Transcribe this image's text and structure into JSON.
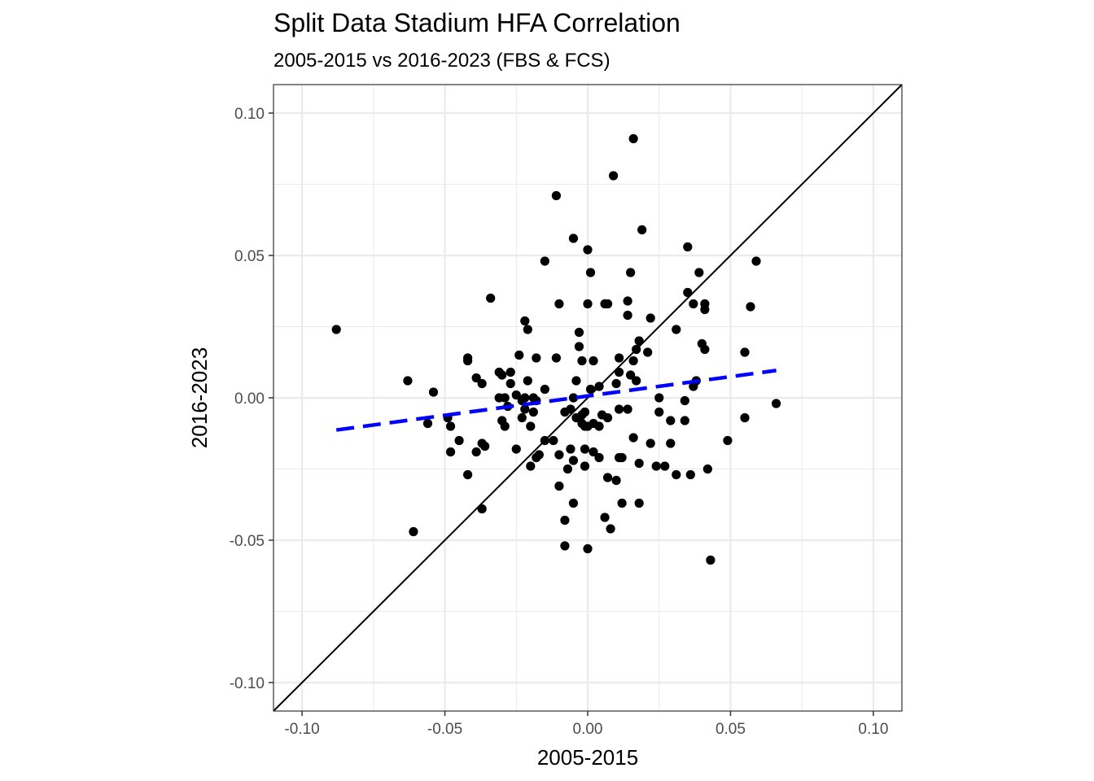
{
  "chart_data": {
    "type": "scatter",
    "title": "Split Data Stadium HFA Correlation",
    "subtitle": "2005-2015 vs 2016-2023 (FBS & FCS)",
    "xlabel": "2005-2015",
    "ylabel": "2016-2023",
    "xlim": [
      -0.11,
      0.11
    ],
    "ylim": [
      -0.11,
      0.11
    ],
    "x_ticks": [
      -0.1,
      -0.05,
      0.0,
      0.05,
      0.1
    ],
    "x_tick_labels": [
      "-0.10",
      "-0.05",
      "0.00",
      "0.05",
      "0.10"
    ],
    "y_ticks": [
      -0.1,
      -0.05,
      0.0,
      0.05,
      0.1
    ],
    "y_tick_labels": [
      "-0.10",
      "-0.05",
      "0.00",
      "0.05",
      "0.10"
    ],
    "minor_ticks": [
      -0.075,
      -0.025,
      0.025,
      0.075
    ],
    "grid": true,
    "colors": {
      "points": "#000000",
      "fit_line": "#0000ff",
      "identity_line": "#000000",
      "grid_major": "#ebebeb",
      "grid_minor": "#ebebeb",
      "panel_border": "#333333"
    },
    "identity_line": {
      "slope": 1,
      "intercept": 0
    },
    "fit_line": {
      "x_start": -0.088,
      "x_end": 0.066,
      "y_start": -0.0113,
      "y_end": 0.0096,
      "style": "dashed"
    },
    "points": [
      {
        "x": 0.016,
        "y": 0.091
      },
      {
        "x": 0.009,
        "y": 0.078
      },
      {
        "x": -0.011,
        "y": 0.071
      },
      {
        "x": -0.005,
        "y": 0.056
      },
      {
        "x": 0.019,
        "y": 0.059
      },
      {
        "x": 0.0,
        "y": 0.052
      },
      {
        "x": 0.035,
        "y": 0.053
      },
      {
        "x": -0.015,
        "y": 0.048
      },
      {
        "x": 0.059,
        "y": 0.048
      },
      {
        "x": 0.001,
        "y": 0.044
      },
      {
        "x": 0.015,
        "y": 0.044
      },
      {
        "x": 0.039,
        "y": 0.044
      },
      {
        "x": -0.034,
        "y": 0.035
      },
      {
        "x": 0.014,
        "y": 0.034
      },
      {
        "x": 0.035,
        "y": 0.037
      },
      {
        "x": -0.01,
        "y": 0.033
      },
      {
        "x": 0.0,
        "y": 0.033
      },
      {
        "x": 0.006,
        "y": 0.033
      },
      {
        "x": 0.007,
        "y": 0.033
      },
      {
        "x": 0.037,
        "y": 0.033
      },
      {
        "x": 0.041,
        "y": 0.033
      },
      {
        "x": 0.041,
        "y": 0.031
      },
      {
        "x": 0.057,
        "y": 0.032
      },
      {
        "x": -0.088,
        "y": 0.024
      },
      {
        "x": -0.022,
        "y": 0.027
      },
      {
        "x": -0.021,
        "y": 0.024
      },
      {
        "x": 0.014,
        "y": 0.029
      },
      {
        "x": 0.022,
        "y": 0.028
      },
      {
        "x": 0.031,
        "y": 0.024
      },
      {
        "x": -0.003,
        "y": 0.023
      },
      {
        "x": 0.018,
        "y": 0.02
      },
      {
        "x": -0.003,
        "y": 0.018
      },
      {
        "x": 0.04,
        "y": 0.019
      },
      {
        "x": 0.017,
        "y": 0.017
      },
      {
        "x": 0.021,
        "y": 0.016
      },
      {
        "x": 0.041,
        "y": 0.017
      },
      {
        "x": -0.024,
        "y": 0.015
      },
      {
        "x": -0.011,
        "y": 0.014
      },
      {
        "x": -0.018,
        "y": 0.014
      },
      {
        "x": -0.042,
        "y": 0.014
      },
      {
        "x": -0.042,
        "y": 0.013
      },
      {
        "x": -0.002,
        "y": 0.013
      },
      {
        "x": 0.002,
        "y": 0.013
      },
      {
        "x": 0.011,
        "y": 0.014
      },
      {
        "x": 0.016,
        "y": 0.013
      },
      {
        "x": 0.055,
        "y": 0.016
      },
      {
        "x": -0.031,
        "y": 0.009
      },
      {
        "x": -0.03,
        "y": 0.008
      },
      {
        "x": -0.027,
        "y": 0.009
      },
      {
        "x": -0.039,
        "y": 0.007
      },
      {
        "x": -0.037,
        "y": 0.005
      },
      {
        "x": -0.063,
        "y": 0.006
      },
      {
        "x": -0.027,
        "y": 0.005
      },
      {
        "x": -0.021,
        "y": 0.006
      },
      {
        "x": -0.004,
        "y": 0.006
      },
      {
        "x": 0.01,
        "y": 0.005
      },
      {
        "x": 0.011,
        "y": 0.009
      },
      {
        "x": 0.015,
        "y": 0.008
      },
      {
        "x": 0.017,
        "y": 0.006
      },
      {
        "x": 0.038,
        "y": 0.006
      },
      {
        "x": 0.037,
        "y": 0.004
      },
      {
        "x": -0.054,
        "y": 0.002
      },
      {
        "x": -0.015,
        "y": 0.003
      },
      {
        "x": 0.001,
        "y": 0.003
      },
      {
        "x": 0.004,
        "y": 0.004
      },
      {
        "x": -0.031,
        "y": 0.0
      },
      {
        "x": -0.029,
        "y": 0.0
      },
      {
        "x": -0.025,
        "y": 0.001
      },
      {
        "x": -0.023,
        "y": -0.001
      },
      {
        "x": -0.022,
        "y": 0.0
      },
      {
        "x": -0.019,
        "y": 0.0
      },
      {
        "x": -0.018,
        "y": -0.001
      },
      {
        "x": -0.005,
        "y": 0.0
      },
      {
        "x": 0.025,
        "y": 0.0
      },
      {
        "x": 0.034,
        "y": -0.001
      },
      {
        "x": 0.066,
        "y": -0.002
      },
      {
        "x": -0.028,
        "y": -0.003
      },
      {
        "x": -0.022,
        "y": -0.004
      },
      {
        "x": -0.019,
        "y": -0.005
      },
      {
        "x": -0.008,
        "y": -0.005
      },
      {
        "x": -0.006,
        "y": -0.004
      },
      {
        "x": -0.004,
        "y": -0.007
      },
      {
        "x": -0.002,
        "y": -0.006
      },
      {
        "x": -0.001,
        "y": -0.005
      },
      {
        "x": 0.005,
        "y": -0.006
      },
      {
        "x": 0.007,
        "y": -0.007
      },
      {
        "x": 0.011,
        "y": -0.004
      },
      {
        "x": 0.014,
        "y": -0.004
      },
      {
        "x": 0.025,
        "y": -0.005
      },
      {
        "x": -0.049,
        "y": -0.007
      },
      {
        "x": -0.03,
        "y": -0.008
      },
      {
        "x": -0.023,
        "y": -0.007
      },
      {
        "x": -0.048,
        "y": -0.01
      },
      {
        "x": -0.056,
        "y": -0.009
      },
      {
        "x": -0.029,
        "y": -0.01
      },
      {
        "x": -0.02,
        "y": -0.01
      },
      {
        "x": -0.002,
        "y": -0.009
      },
      {
        "x": -0.001,
        "y": -0.01
      },
      {
        "x": 0.0,
        "y": -0.01
      },
      {
        "x": 0.002,
        "y": -0.009
      },
      {
        "x": 0.004,
        "y": -0.01
      },
      {
        "x": 0.029,
        "y": -0.008
      },
      {
        "x": 0.034,
        "y": -0.008
      },
      {
        "x": 0.055,
        "y": -0.007
      },
      {
        "x": -0.045,
        "y": -0.015
      },
      {
        "x": -0.037,
        "y": -0.016
      },
      {
        "x": -0.036,
        "y": -0.017
      },
      {
        "x": -0.015,
        "y": -0.015
      },
      {
        "x": -0.012,
        "y": -0.015
      },
      {
        "x": 0.016,
        "y": -0.014
      },
      {
        "x": 0.022,
        "y": -0.016
      },
      {
        "x": 0.029,
        "y": -0.016
      },
      {
        "x": 0.049,
        "y": -0.015
      },
      {
        "x": -0.048,
        "y": -0.019
      },
      {
        "x": -0.039,
        "y": -0.019
      },
      {
        "x": -0.025,
        "y": -0.018
      },
      {
        "x": -0.017,
        "y": -0.02
      },
      {
        "x": -0.018,
        "y": -0.021
      },
      {
        "x": -0.01,
        "y": -0.02
      },
      {
        "x": -0.006,
        "y": -0.018
      },
      {
        "x": -0.001,
        "y": -0.018
      },
      {
        "x": 0.002,
        "y": -0.019
      },
      {
        "x": -0.005,
        "y": -0.022
      },
      {
        "x": 0.004,
        "y": -0.021
      },
      {
        "x": 0.011,
        "y": -0.021
      },
      {
        "x": 0.012,
        "y": -0.021
      },
      {
        "x": -0.02,
        "y": -0.024
      },
      {
        "x": -0.007,
        "y": -0.025
      },
      {
        "x": -0.001,
        "y": -0.024
      },
      {
        "x": 0.018,
        "y": -0.023
      },
      {
        "x": 0.024,
        "y": -0.024
      },
      {
        "x": 0.027,
        "y": -0.024
      },
      {
        "x": 0.042,
        "y": -0.025
      },
      {
        "x": -0.042,
        "y": -0.027
      },
      {
        "x": 0.007,
        "y": -0.028
      },
      {
        "x": 0.01,
        "y": -0.029
      },
      {
        "x": 0.031,
        "y": -0.027
      },
      {
        "x": 0.036,
        "y": -0.027
      },
      {
        "x": -0.01,
        "y": -0.031
      },
      {
        "x": -0.005,
        "y": -0.037
      },
      {
        "x": 0.012,
        "y": -0.037
      },
      {
        "x": 0.018,
        "y": -0.037
      },
      {
        "x": -0.037,
        "y": -0.039
      },
      {
        "x": 0.006,
        "y": -0.042
      },
      {
        "x": -0.008,
        "y": -0.043
      },
      {
        "x": 0.008,
        "y": -0.046
      },
      {
        "x": -0.061,
        "y": -0.047
      },
      {
        "x": -0.008,
        "y": -0.052
      },
      {
        "x": 0.0,
        "y": -0.053
      },
      {
        "x": 0.043,
        "y": -0.057
      }
    ]
  }
}
